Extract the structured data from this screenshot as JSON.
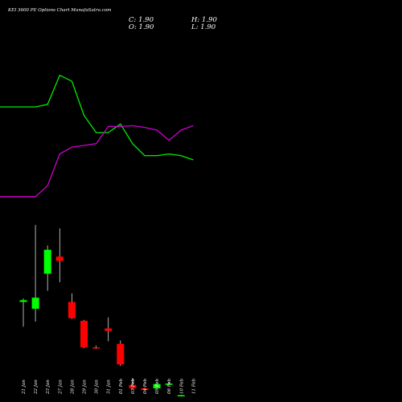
{
  "header": {
    "title": "KEI 3600  PE Options  Chart MunafaSutra.com"
  },
  "ohlc": {
    "close": "C: 1.90",
    "high": "H: 1.90",
    "open": "O: 1.90",
    "low": "L: 1.90"
  },
  "colors": {
    "background": "#000000",
    "up": "#00ff00",
    "down": "#ff0000",
    "line_green": "#00ee00",
    "line_magenta": "#cc00cc",
    "text": "#ffffff"
  },
  "chart_data": {
    "type": "candlestick",
    "categories": [
      "21 Jan",
      "22 Jan",
      "23 Jan",
      "27 Jan",
      "28 Jan",
      "29 Jan",
      "30 Jan",
      "31 Jan",
      "01 Feb",
      "03 Feb",
      "04 Feb",
      "05 Feb",
      "06 Feb",
      "10 Feb",
      "11 Feb"
    ],
    "candles": [
      {
        "open": 147.0,
        "high": 151.0,
        "low": 118.0,
        "close": 149.0,
        "dir": "up"
      },
      {
        "open": 139.0,
        "high": 237.0,
        "low": 124.0,
        "close": 152.0,
        "dir": "up"
      },
      {
        "open": 180.0,
        "high": 213.0,
        "low": 160.0,
        "close": 208.0,
        "dir": "up"
      },
      {
        "open": 200.0,
        "high": 233.0,
        "low": 170.0,
        "close": 195.0,
        "dir": "down"
      },
      {
        "open": 147.0,
        "high": 157.0,
        "low": 127.0,
        "close": 128.0,
        "dir": "down"
      },
      {
        "open": 125.0,
        "high": 126.0,
        "low": 93.0,
        "close": 94.0,
        "dir": "down"
      },
      {
        "open": 94.0,
        "high": 96.0,
        "low": 92.0,
        "close": 93.0,
        "dir": "down"
      },
      {
        "open": 116.0,
        "high": 129.0,
        "low": 101.0,
        "close": 113.0,
        "dir": "down"
      },
      {
        "open": 98.0,
        "high": 102.0,
        "low": 72.0,
        "close": 74.0,
        "dir": "down"
      },
      {
        "open": 50.0,
        "high": 58.0,
        "low": 45.0,
        "close": 46.0,
        "dir": "down"
      },
      {
        "open": 46.0,
        "high": 47.0,
        "low": 44.0,
        "close": 44.0,
        "dir": "down"
      },
      {
        "open": 46.0,
        "high": 51.0,
        "low": 45.0,
        "close": 51.0,
        "dir": "up"
      },
      {
        "open": 51.0,
        "high": 53.0,
        "low": 50.0,
        "close": 51.5,
        "dir": "up"
      },
      {
        "open": 38.0,
        "high": 38.5,
        "low": 37.5,
        "close": 38.0,
        "dir": "up"
      }
    ],
    "series": [
      {
        "values": [
          375,
          375,
          378,
          412,
          405,
          365,
          345,
          345,
          355,
          332,
          318,
          318,
          320,
          318,
          313
        ]
      },
      {
        "values": [
          270,
          270,
          283,
          320,
          328,
          330,
          332,
          352,
          352,
          353,
          351,
          348,
          336,
          348,
          353
        ]
      }
    ],
    "ylim": [
      30,
      500
    ]
  }
}
